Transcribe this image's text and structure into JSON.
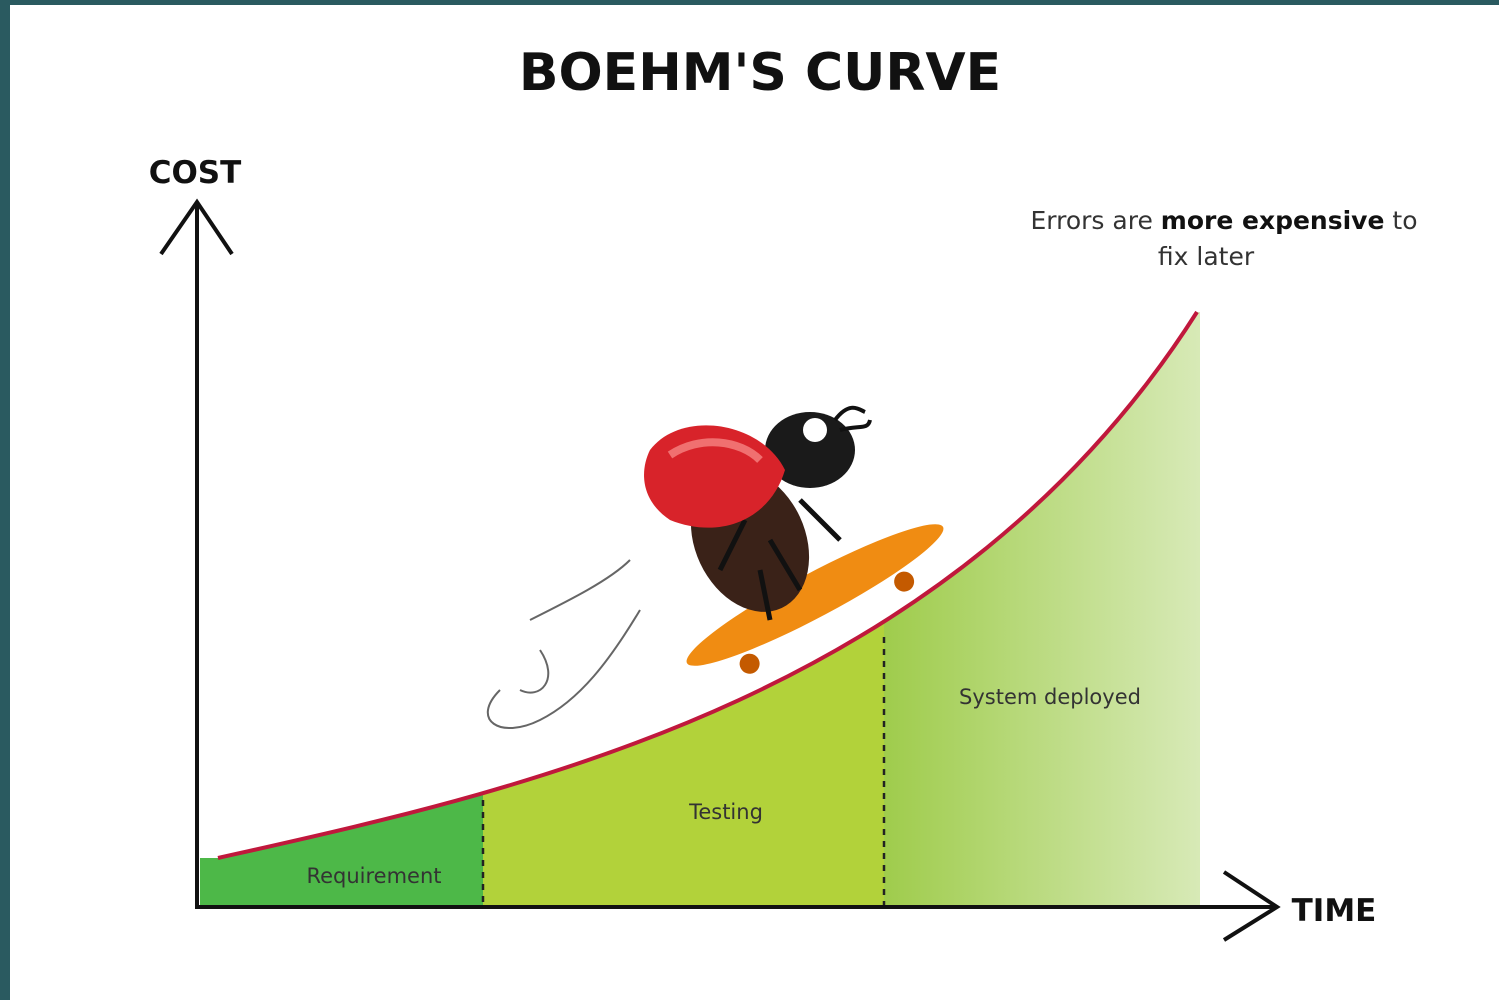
{
  "title": "BOEHM'S CURVE",
  "y_axis_label": "COST",
  "x_axis_label": "TIME",
  "annotation": {
    "before": "Errors are",
    "emphasis": "more expensive",
    "after": "to fix later"
  },
  "phases": [
    "Requirement",
    "Testing",
    "System deployed"
  ]
}
